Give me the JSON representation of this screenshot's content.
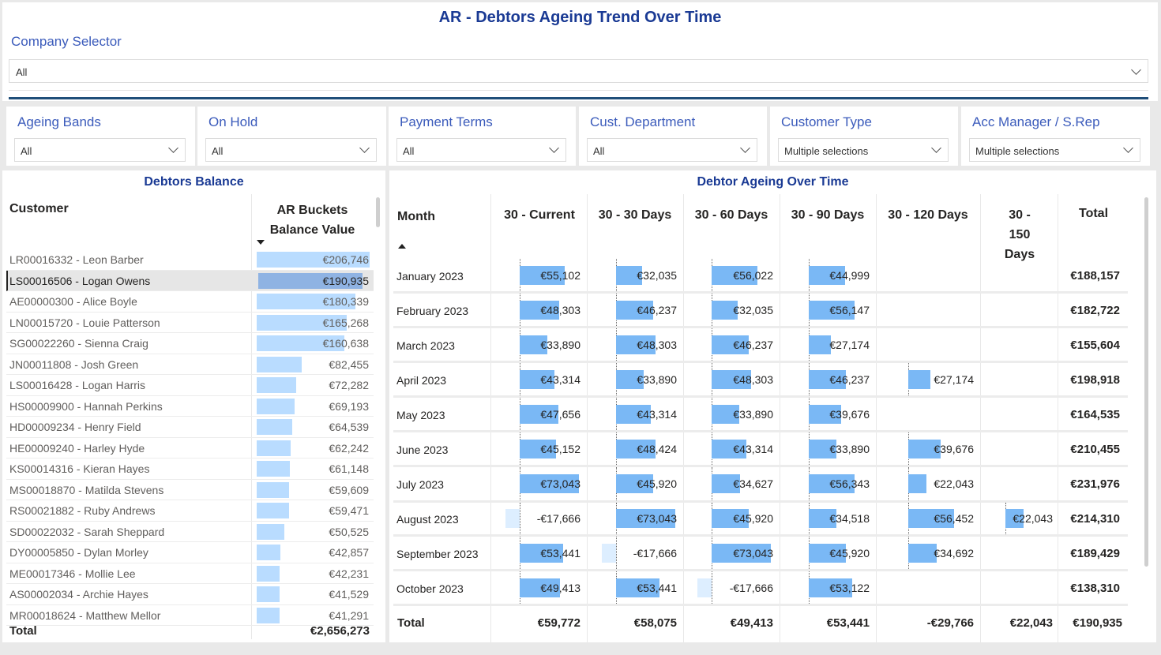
{
  "title": "AR - Debtors Ageing Trend Over Time",
  "company_selector": {
    "label": "Company Selector",
    "value": "All"
  },
  "slicers": [
    {
      "label": "Ageing Bands",
      "value": "All"
    },
    {
      "label": "On Hold",
      "value": "All"
    },
    {
      "label": "Payment Terms",
      "value": "All"
    },
    {
      "label": "Cust. Department",
      "value": "All"
    },
    {
      "label": "Customer Type",
      "value": "Multiple selections"
    },
    {
      "label": "Acc Manager / S.Rep",
      "value": "Multiple selections"
    }
  ],
  "debtors_balance": {
    "title": "Debtors Balance",
    "col_customer": "Customer",
    "col_value_line1": "AR Buckets",
    "col_value_line2": "Balance Value",
    "rows": [
      {
        "name": "LR00016332 - Leon Barber",
        "display": "€206,746",
        "value": 206746
      },
      {
        "name": "LS00016506 - Logan Owens",
        "display": "€190,935",
        "value": 190935,
        "selected": true
      },
      {
        "name": "AE00000300 - Alice Boyle",
        "display": "€180,339",
        "value": 180339
      },
      {
        "name": "LN00015720 - Louie Patterson",
        "display": "€165,268",
        "value": 165268
      },
      {
        "name": "SG00022260 - Sienna Craig",
        "display": "€160,638",
        "value": 160638
      },
      {
        "name": "JN00011808 - Josh Green",
        "display": "€82,455",
        "value": 82455
      },
      {
        "name": "LS00016428 - Logan Harris",
        "display": "€72,282",
        "value": 72282
      },
      {
        "name": "HS00009900 - Hannah Perkins",
        "display": "€69,193",
        "value": 69193
      },
      {
        "name": "HD00009234 - Henry Field",
        "display": "€64,539",
        "value": 64539
      },
      {
        "name": "HE00009240 - Harley Hyde",
        "display": "€62,242",
        "value": 62242
      },
      {
        "name": "KS00014316 - Kieran Hayes",
        "display": "€61,148",
        "value": 61148
      },
      {
        "name": "MS00018870 - Matilda Stevens",
        "display": "€59,609",
        "value": 59609
      },
      {
        "name": "RS00021882 - Ruby Andrews",
        "display": "€59,471",
        "value": 59471
      },
      {
        "name": "SD00022032 - Sarah Sheppard",
        "display": "€50,525",
        "value": 50525
      },
      {
        "name": "DY00005850 - Dylan Morley",
        "display": "€42,857",
        "value": 42857
      },
      {
        "name": "ME00017346 - Mollie Lee",
        "display": "€42,231",
        "value": 42231
      },
      {
        "name": "AS00002034 - Archie Hayes",
        "display": "€41,529",
        "value": 41529
      },
      {
        "name": "MR00018624 - Matthew Mellor",
        "display": "€41,291",
        "value": 41291
      }
    ],
    "total_label": "Total",
    "total_value": "€2,656,273"
  },
  "ageing": {
    "title": "Debtor Ageing Over Time",
    "col_month": "Month",
    "columns": [
      "30 - Current",
      "30 - 30 Days",
      "30 - 60 Days",
      "30 - 90 Days",
      "30 - 120 Days",
      "30 - 150 Days",
      "Total"
    ],
    "rows": [
      {
        "month": "January 2023",
        "cells": [
          "€55,102",
          "€32,035",
          "€56,022",
          "€44,999",
          "",
          ""
        ],
        "values": [
          55102,
          32035,
          56022,
          44999,
          null,
          null
        ],
        "total": "€188,157"
      },
      {
        "month": "February 2023",
        "cells": [
          "€48,303",
          "€46,237",
          "€32,035",
          "€56,147",
          "",
          ""
        ],
        "values": [
          48303,
          46237,
          32035,
          56147,
          null,
          null
        ],
        "total": "€182,722"
      },
      {
        "month": "March 2023",
        "cells": [
          "€33,890",
          "€48,303",
          "€46,237",
          "€27,174",
          "",
          ""
        ],
        "values": [
          33890,
          48303,
          46237,
          27174,
          null,
          null
        ],
        "total": "€155,604"
      },
      {
        "month": "April 2023",
        "cells": [
          "€43,314",
          "€33,890",
          "€48,303",
          "€46,237",
          "€27,174",
          ""
        ],
        "values": [
          43314,
          33890,
          48303,
          46237,
          27174,
          null
        ],
        "total": "€198,918"
      },
      {
        "month": "May 2023",
        "cells": [
          "€47,656",
          "€43,314",
          "€33,890",
          "€39,676",
          "",
          ""
        ],
        "values": [
          47656,
          43314,
          33890,
          39676,
          null,
          null
        ],
        "total": "€164,535"
      },
      {
        "month": "June 2023",
        "cells": [
          "€45,152",
          "€48,424",
          "€43,314",
          "€33,890",
          "€39,676",
          ""
        ],
        "values": [
          45152,
          48424,
          43314,
          33890,
          39676,
          null
        ],
        "total": "€210,455"
      },
      {
        "month": "July 2023",
        "cells": [
          "€73,043",
          "€45,920",
          "€34,627",
          "€56,343",
          "€22,043",
          ""
        ],
        "values": [
          73043,
          45920,
          34627,
          56343,
          22043,
          null
        ],
        "total": "€231,976"
      },
      {
        "month": "August 2023",
        "cells": [
          "-€17,666",
          "€73,043",
          "€45,920",
          "€34,518",
          "€56,452",
          "€22,043"
        ],
        "values": [
          -17666,
          73043,
          45920,
          34518,
          56452,
          22043
        ],
        "total": "€214,310"
      },
      {
        "month": "September 2023",
        "cells": [
          "€53,441",
          "-€17,666",
          "€73,043",
          "€45,920",
          "€34,692",
          ""
        ],
        "values": [
          53441,
          -17666,
          73043,
          45920,
          34692,
          null
        ],
        "total": "€189,429"
      },
      {
        "month": "October 2023",
        "cells": [
          "€49,413",
          "€53,441",
          "-€17,666",
          "€53,122",
          "",
          ""
        ],
        "values": [
          49413,
          53441,
          -17666,
          53122,
          null,
          null
        ],
        "total": "€138,310"
      }
    ],
    "total_label": "Total",
    "totals": [
      "€59,772",
      "€58,075",
      "€49,413",
      "€53,441",
      "-€29,766",
      "€22,043",
      "€190,935"
    ]
  }
}
